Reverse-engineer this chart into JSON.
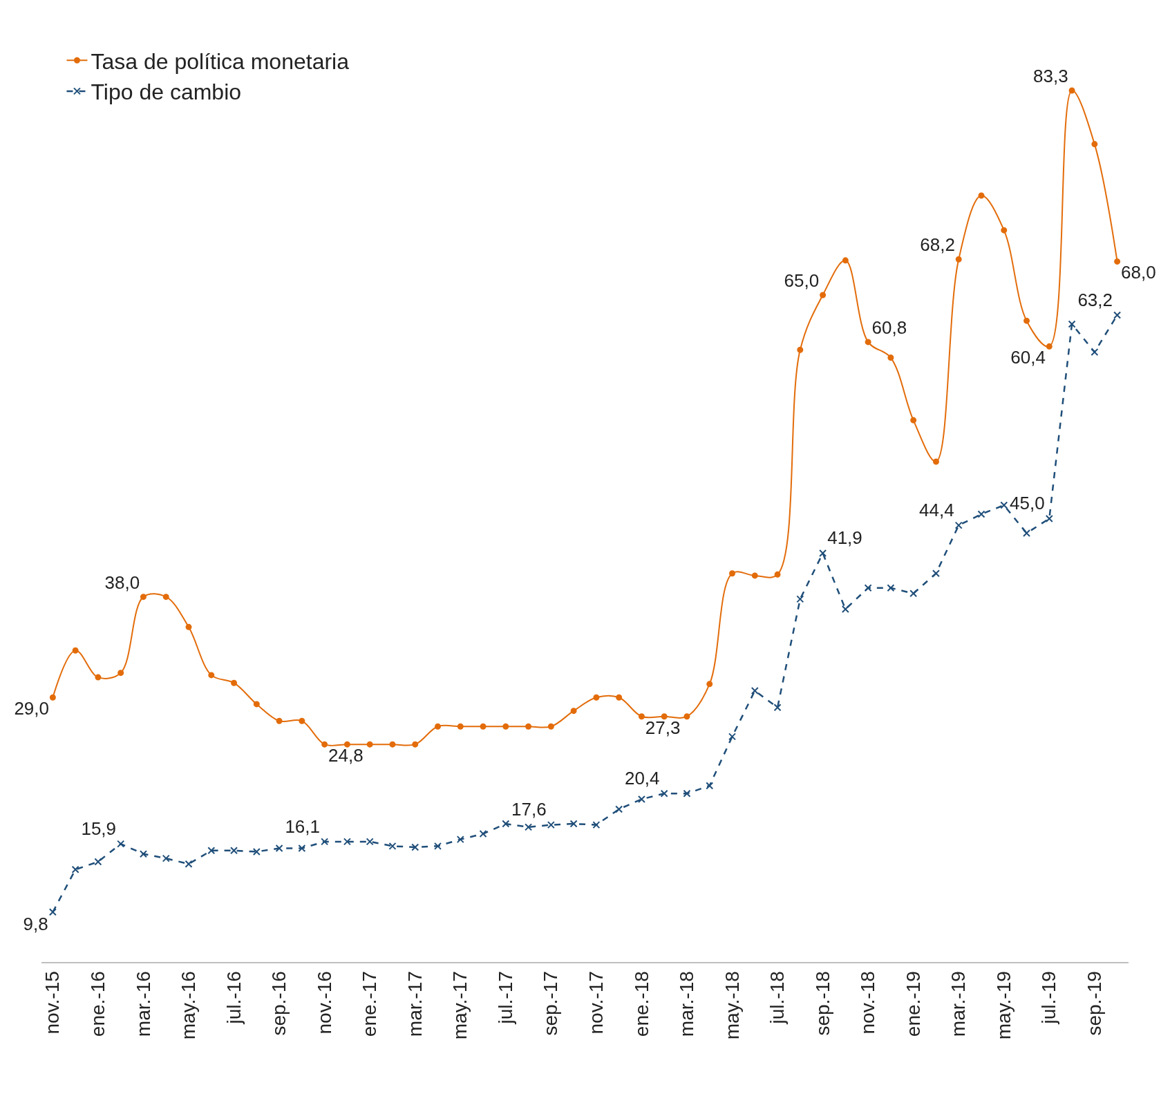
{
  "chart_data": {
    "type": "line",
    "categories": [
      "nov.-15",
      null,
      "ene.-16",
      null,
      "mar.-16",
      null,
      "may.-16",
      null,
      "jul.-16",
      null,
      "sep.-16",
      null,
      "nov.-16",
      null,
      "ene.-17",
      null,
      "mar.-17",
      null,
      "may.-17",
      null,
      "jul.-17",
      null,
      "sep.-17",
      null,
      "nov.-17",
      null,
      "ene.-18",
      null,
      "mar.-18",
      null,
      "may.-18",
      null,
      "jul.-18",
      null,
      "sep.-18",
      null,
      "nov.-18",
      null,
      "ene.-19",
      null,
      "mar.-19",
      null,
      "may.-19",
      null,
      "jul.-19",
      null,
      "sep.-19",
      null
    ],
    "series": [
      {
        "name": "Tasa de política monetaria",
        "color": "#e36c0a",
        "marker": "circle",
        "line_style": "solid",
        "values": [
          29.0,
          33.2,
          30.8,
          31.2,
          38.0,
          38.0,
          35.3,
          31.0,
          30.3,
          28.4,
          26.9,
          26.9,
          24.8,
          24.8,
          24.8,
          24.8,
          24.8,
          26.4,
          26.4,
          26.4,
          26.4,
          26.4,
          26.4,
          27.8,
          29.0,
          29.0,
          27.3,
          27.3,
          27.3,
          30.2,
          40.1,
          39.9,
          40.0,
          60.1,
          65.0,
          68.1,
          60.8,
          59.4,
          53.8,
          50.1,
          68.2,
          73.9,
          70.8,
          62.7,
          60.4,
          83.3,
          78.5,
          68.0
        ],
        "value_labels": [
          "29,0",
          null,
          null,
          null,
          "38,0",
          null,
          null,
          null,
          null,
          null,
          null,
          null,
          "24,8",
          null,
          null,
          null,
          null,
          null,
          null,
          null,
          null,
          null,
          null,
          null,
          null,
          null,
          "27,3",
          null,
          null,
          null,
          null,
          null,
          null,
          null,
          "65,0",
          null,
          "60,8",
          null,
          null,
          null,
          "68,2",
          null,
          null,
          null,
          "60,4",
          "83,3",
          null,
          "68,0"
        ]
      },
      {
        "name": "Tipo de cambio",
        "color": "#1f4e79",
        "marker": "cross",
        "line_style": "dashed",
        "values": [
          9.8,
          13.6,
          14.3,
          15.9,
          15.0,
          14.6,
          14.1,
          15.3,
          15.3,
          15.2,
          15.5,
          15.5,
          16.1,
          16.1,
          16.1,
          15.7,
          15.6,
          15.7,
          16.3,
          16.8,
          17.7,
          17.4,
          17.6,
          17.7,
          17.6,
          19.0,
          19.9,
          20.4,
          20.4,
          21.1,
          25.5,
          29.6,
          28.1,
          37.8,
          41.9,
          36.9,
          38.8,
          38.8,
          38.3,
          40.1,
          44.4,
          45.4,
          46.2,
          43.7,
          45.0,
          62.4,
          59.9,
          63.2
        ],
        "value_labels": [
          "9,8",
          null,
          null,
          "15,9",
          null,
          null,
          null,
          null,
          null,
          null,
          null,
          null,
          "16,1",
          null,
          null,
          null,
          null,
          null,
          null,
          null,
          null,
          null,
          "17,6",
          null,
          null,
          null,
          null,
          "20,4",
          null,
          null,
          null,
          null,
          null,
          null,
          "41,9",
          null,
          null,
          null,
          null,
          null,
          "44,4",
          null,
          null,
          null,
          "45,0",
          null,
          null,
          "63,2"
        ]
      }
    ],
    "legend": "top left"
  }
}
